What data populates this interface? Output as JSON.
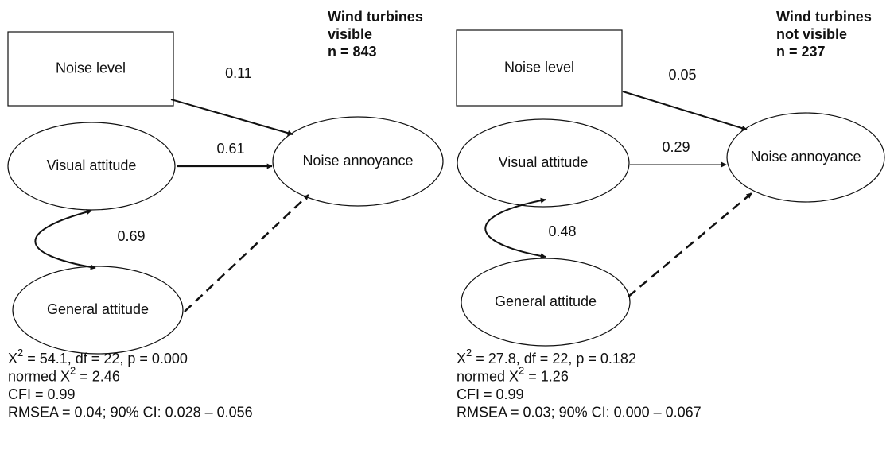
{
  "panels": [
    {
      "heading": [
        "Wind turbines",
        "visible",
        "n = 843"
      ],
      "nodes": {
        "noise": "Noise level",
        "visual": "Visual attitude",
        "general": "General attitude",
        "annoyance": "Noise annoyance"
      },
      "edges": {
        "noise_annoyance": "0.11",
        "visual_annoyance": "0.61",
        "visual_general": "0.69"
      },
      "fit": [
        [
          "X",
          "2",
          " = 54.1, df = 22, p = 0.000"
        ],
        [
          "normed X",
          "2",
          " = 2.46"
        ],
        [
          "CFI = 0.99"
        ],
        [
          "RMSEA = 0.04; 90% CI: 0.028 – 0.056"
        ]
      ]
    },
    {
      "heading": [
        "Wind turbines",
        "not visible",
        "n = 237"
      ],
      "nodes": {
        "noise": "Noise level",
        "visual": "Visual attitude",
        "general": "General attitude",
        "annoyance": "Noise annoyance"
      },
      "edges": {
        "noise_annoyance": "0.05",
        "visual_annoyance": "0.29",
        "visual_general": "0.48"
      },
      "fit": [
        [
          "X",
          "2",
          " = 27.8, df = 22, p = 0.182"
        ],
        [
          "normed X",
          "2",
          " = 1.26"
        ],
        [
          "CFI = 0.99"
        ],
        [
          "RMSEA = 0.03; 90% CI: 0.000 – 0.067"
        ]
      ]
    }
  ]
}
